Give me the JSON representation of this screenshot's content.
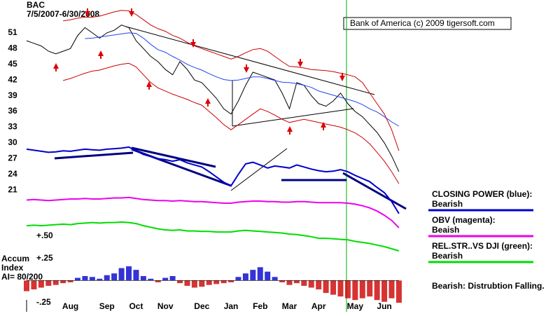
{
  "chart_data": [
    {
      "type": "line",
      "title": "BAC",
      "subtitle": "7/5/2007-6/30/2008",
      "annotation": "Bank of America (c) 2009 tigersoft.com",
      "categories": [
        null,
        null,
        null,
        null,
        null,
        null,
        "Aug",
        null,
        null,
        null,
        null,
        "Sep",
        null,
        null,
        null,
        "Oct",
        null,
        null,
        null,
        "Nov",
        null,
        null,
        null,
        null,
        "Dec",
        null,
        null,
        null,
        "Jan",
        null,
        null,
        null,
        "Feb",
        null,
        null,
        null,
        "Mar",
        null,
        null,
        null,
        "Apr",
        null,
        null,
        null,
        null,
        "May",
        null,
        null,
        null,
        "Jun",
        null,
        null
      ],
      "ylim": [
        9,
        56.2
      ],
      "yticks": [
        21,
        24,
        27,
        30,
        33,
        36,
        39,
        42,
        45,
        48,
        51
      ],
      "series": [
        {
          "color": "#000000",
          "values": [
            49.5,
            49,
            48.5,
            47.5,
            47,
            47.5,
            48,
            50.5,
            52,
            51,
            50,
            51,
            51.5,
            52.5,
            52,
            49.5,
            48,
            46.5,
            45.5,
            44,
            43,
            45.5,
            44,
            42,
            41.5,
            40,
            38.5,
            36.5,
            35.5,
            38,
            41,
            43.5,
            43,
            42.5,
            42,
            39.5,
            36.5,
            41.5,
            41,
            39,
            37.5,
            37,
            38,
            39.5,
            37.5,
            36,
            35,
            33.5,
            32,
            30,
            27.5,
            24.5
          ]
        },
        {
          "color": "#cc0000",
          "values": [
            null,
            null,
            null,
            null,
            null,
            53.3,
            53.5,
            53.8,
            54,
            54,
            54.2,
            54.6,
            55,
            55.3,
            55.2,
            54.5,
            53.5,
            52.5,
            51.8,
            51.3,
            50.5,
            50,
            49.2,
            48.5,
            48,
            47.5,
            47,
            46.5,
            46,
            46.5,
            47.2,
            47.8,
            48,
            47.5,
            46.5,
            45.5,
            44.6,
            44.5,
            44.3,
            44,
            43.9,
            43.8,
            43.6,
            43.3,
            43,
            42.6,
            41.5,
            39.5,
            37.5,
            35.5,
            32.5,
            28.5
          ]
        },
        {
          "color": "#cc0000",
          "values": [
            null,
            null,
            null,
            null,
            null,
            41.9,
            42.3,
            42.8,
            43.3,
            43.7,
            43.9,
            44.3,
            44.7,
            45,
            45.2,
            44.5,
            43,
            41.5,
            40.5,
            39.9,
            39.3,
            38.8,
            38.3,
            37.7,
            37.2,
            36,
            34.8,
            33.5,
            32.5,
            33.5,
            34.5,
            35.5,
            36.5,
            36,
            35.3,
            34.5,
            33.9,
            34.2,
            34.5,
            34.2,
            33.9,
            33.6,
            33.3,
            33,
            32.5,
            31.9,
            31,
            29.8,
            28.2,
            26.5,
            24.5,
            22.2
          ]
        },
        {
          "color": "#2244ee",
          "values": [
            null,
            null,
            null,
            null,
            null,
            null,
            null,
            null,
            49.9,
            50,
            50.2,
            50.4,
            50.6,
            50.8,
            51,
            50.9,
            50,
            48.8,
            47.8,
            47.3,
            46.5,
            45.8,
            45,
            44.4,
            43.9,
            43.2,
            42.6,
            42.1,
            41.9,
            42,
            42.3,
            42.6,
            42.6,
            42.3,
            41.9,
            41.6,
            41.5,
            41.3,
            41,
            40.6,
            39.9,
            39.5,
            39.1,
            38.7,
            38.3,
            37.9,
            37.3,
            36.5,
            35.9,
            35,
            34,
            33.2
          ]
        },
        {
          "name": "CLOSING POWER (blue):",
          "status": "Bearish",
          "color": "#0000cc",
          "values": [
            28.8,
            28.6,
            28.4,
            28.2,
            28.3,
            28.5,
            28.4,
            28.6,
            28.8,
            28.7,
            28.6,
            28.8,
            28.9,
            29,
            29.2,
            28.5,
            27.8,
            27.4,
            27,
            26.8,
            26.5,
            26.8,
            26.2,
            25.8,
            25.4,
            24.5,
            23.5,
            22.5,
            21.8,
            24,
            26,
            26.3,
            25.8,
            25.2,
            25.6,
            25.4,
            25.2,
            25.8,
            25.4,
            25,
            24.7,
            24.5,
            24.6,
            24.9,
            24.5,
            23.8,
            23.2,
            22.6,
            21.5,
            20.5,
            18.8,
            16.5
          ]
        },
        {
          "name": "OBV (magenta):",
          "status": "Beaish",
          "color": "#ee00ee",
          "values": [
            19.1,
            19.2,
            19.1,
            19,
            19.1,
            19.2,
            19.3,
            19.3,
            19.4,
            19.3,
            19.3,
            19.4,
            19.5,
            19.5,
            19.6,
            19.4,
            19.2,
            19.1,
            19,
            19,
            18.9,
            19,
            18.9,
            18.8,
            18.8,
            18.7,
            18.6,
            18.5,
            18.5,
            18.7,
            18.8,
            18.9,
            18.9,
            18.8,
            18.8,
            18.7,
            18.7,
            18.8,
            18.8,
            18.7,
            18.6,
            18.6,
            18.6,
            18.6,
            18.5,
            18.3,
            18,
            17.6,
            17,
            16.2,
            15.2,
            13.8
          ]
        },
        {
          "name": "REL.STR..VS DJI (green):",
          "status": "Bearish",
          "color": "#00dd00",
          "values": [
            14.2,
            14.3,
            14.2,
            14.3,
            14.4,
            14.5,
            14.4,
            14.6,
            14.7,
            14.8,
            14.7,
            14.8,
            14.8,
            14.9,
            14.8,
            14.6,
            14.2,
            13.9,
            13.6,
            13.4,
            13.3,
            13.4,
            13.2,
            13.2,
            13.1,
            13.1,
            13,
            13,
            13,
            13.2,
            13.3,
            13.2,
            13.1,
            13,
            12.9,
            12.8,
            12.6,
            12.5,
            12.3,
            12.1,
            11.8,
            11.8,
            11.7,
            11.6,
            11.5,
            11.2,
            11,
            10.8,
            10.5,
            10.2,
            9.8,
            9.4
          ]
        }
      ],
      "footnote": "Bearish: Distrubtion Falling."
    },
    {
      "type": "bar",
      "title": [
        "Accum",
        "Index",
        "AI= 80/200"
      ],
      "ylim": [
        -0.35,
        0.5
      ],
      "yticks": [
        {
          "value": 0.5,
          "label": "+.50"
        },
        {
          "value": 0.25,
          "label": "+.25"
        },
        {
          "value": -0.25,
          "label": "-.25"
        }
      ],
      "color": "#0000cc",
      "negative_color": "#cc0000",
      "values": [
        -0.12,
        -0.1,
        -0.08,
        -0.06,
        -0.05,
        -0.03,
        -0.02,
        0.03,
        0.05,
        0.04,
        0.02,
        0.06,
        0.08,
        0.14,
        0.16,
        0.12,
        0.05,
        0.02,
        -0.02,
        0.03,
        0.05,
        -0.03,
        -0.06,
        -0.08,
        -0.07,
        -0.05,
        -0.04,
        -0.03,
        -0.02,
        0.04,
        0.08,
        0.12,
        0.15,
        0.1,
        0.04,
        -0.02,
        -0.05,
        -0.03,
        -0.06,
        -0.08,
        -0.1,
        -0.14,
        -0.16,
        -0.18,
        -0.2,
        -0.22,
        -0.2,
        -0.18,
        -0.22,
        -0.24,
        -0.2,
        -0.25
      ]
    }
  ]
}
